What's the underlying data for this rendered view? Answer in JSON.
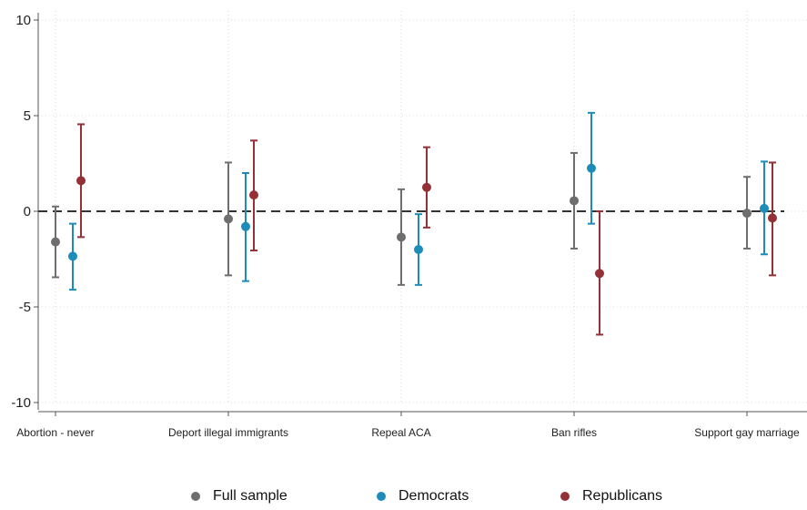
{
  "chart_data": {
    "type": "scatter",
    "subtype": "coefficient plot with confidence intervals",
    "categories": [
      "Abortion - never",
      "Deport illegal immigrants",
      "Repeal ACA",
      "Ban rifles",
      "Support gay marriage"
    ],
    "ylim": [
      -10,
      10
    ],
    "yticks": [
      "10",
      "5",
      "0",
      "-5",
      "-10"
    ],
    "reference_line": 0,
    "grid": "dotted vertical and horizontal",
    "legend_position": "bottom",
    "series": [
      {
        "name": "Full sample",
        "color": "#6e6e6e",
        "values": [
          -1.6,
          -0.4,
          -1.35,
          0.55,
          -0.1
        ],
        "ci_low": [
          -3.45,
          -3.35,
          -3.85,
          -1.95,
          -1.95
        ],
        "ci_high": [
          0.25,
          2.55,
          1.15,
          3.05,
          1.8
        ]
      },
      {
        "name": "Democrats",
        "color": "#1d8cb8",
        "values": [
          -2.35,
          -0.8,
          -2.0,
          2.25,
          0.15
        ],
        "ci_low": [
          -4.1,
          -3.65,
          -3.85,
          -0.65,
          -2.25
        ],
        "ci_high": [
          -0.65,
          2.0,
          -0.15,
          5.15,
          2.6
        ]
      },
      {
        "name": "Republicans",
        "color": "#933136",
        "values": [
          1.6,
          0.85,
          1.25,
          -3.25,
          -0.35
        ],
        "ci_low": [
          -1.35,
          -2.05,
          -0.85,
          -6.45,
          -3.35
        ],
        "ci_high": [
          4.55,
          3.7,
          3.35,
          0.0,
          2.55
        ]
      }
    ]
  }
}
